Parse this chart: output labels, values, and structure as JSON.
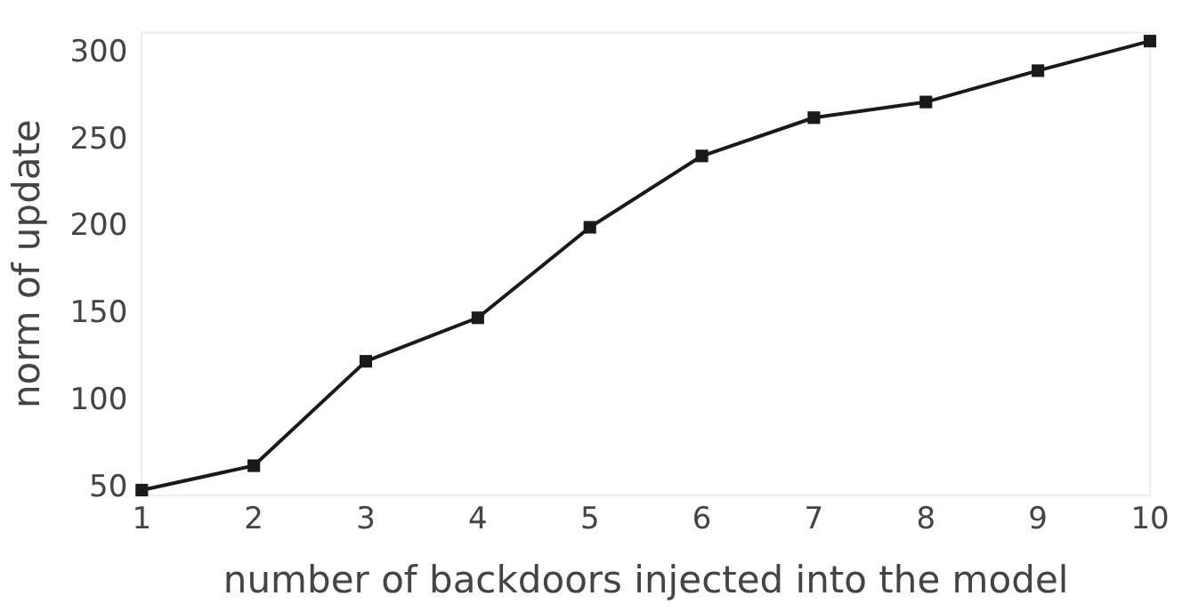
{
  "chart_data": {
    "type": "line",
    "xlabel": "number of backdoors injected into the model",
    "ylabel": "norm of update",
    "x": [
      1,
      2,
      3,
      4,
      5,
      6,
      7,
      8,
      9,
      10
    ],
    "series": [
      {
        "color": "#1a1a1a",
        "values": [
          49,
          63,
          123,
          148,
          200,
          241,
          263,
          272,
          290,
          307
        ]
      }
    ],
    "xlim": [
      1,
      10
    ],
    "xticks": [
      1,
      2,
      3,
      4,
      5,
      6,
      7,
      8,
      9,
      10
    ],
    "ylim": [
      46,
      312
    ],
    "yticks": [
      50,
      100,
      150,
      200,
      250,
      300
    ],
    "grid": false,
    "legend": false,
    "marker": "square",
    "line_style": "solid"
  }
}
